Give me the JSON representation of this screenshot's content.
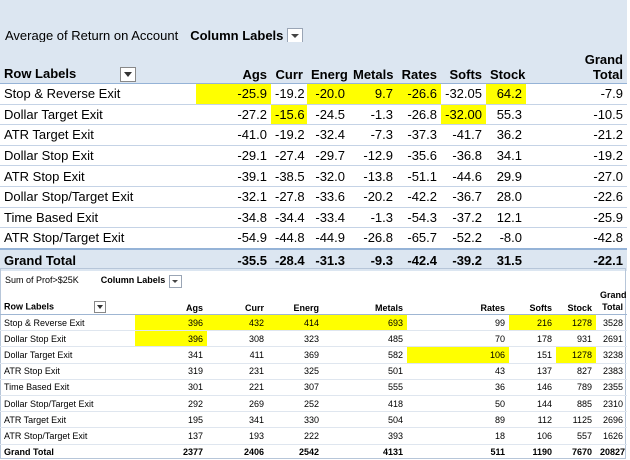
{
  "pivot1": {
    "title": "Average of Return on Account",
    "column_labels": "Column Labels",
    "row_labels": "Row Labels",
    "headers": [
      "Ags",
      "Curr",
      "Energ",
      "Metals",
      "Rates",
      "Softs",
      "Stock",
      "Grand Total"
    ],
    "grand_line1": "Grand",
    "grand_line2": "Total",
    "rows": [
      {
        "label": "Stop & Reverse Exit",
        "cells": [
          "-25.9",
          "-19.2",
          "-20.0",
          "9.7",
          "-26.6",
          "-32.05",
          "64.2",
          "-7.9"
        ],
        "hl": [
          true,
          false,
          true,
          true,
          true,
          false,
          true,
          false
        ]
      },
      {
        "label": "Dollar Target Exit",
        "cells": [
          "-27.2",
          "-15.6",
          "-24.5",
          "-1.3",
          "-26.8",
          "-32.00",
          "55.3",
          "-10.5"
        ],
        "hl": [
          false,
          true,
          false,
          false,
          false,
          true,
          false,
          false
        ]
      },
      {
        "label": "ATR Target Exit",
        "cells": [
          "-41.0",
          "-19.2",
          "-32.4",
          "-7.3",
          "-37.3",
          "-41.7",
          "36.2",
          "-21.2"
        ],
        "hl": [
          false,
          false,
          false,
          false,
          false,
          false,
          false,
          false
        ]
      },
      {
        "label": "Dollar Stop Exit",
        "cells": [
          "-29.1",
          "-27.4",
          "-29.7",
          "-12.9",
          "-35.6",
          "-36.8",
          "34.1",
          "-19.2"
        ],
        "hl": [
          false,
          false,
          false,
          false,
          false,
          false,
          false,
          false
        ]
      },
      {
        "label": "ATR Stop Exit",
        "cells": [
          "-39.1",
          "-38.5",
          "-32.0",
          "-13.8",
          "-51.1",
          "-44.6",
          "29.9",
          "-27.0"
        ],
        "hl": [
          false,
          false,
          false,
          false,
          false,
          false,
          false,
          false
        ]
      },
      {
        "label": "Dollar Stop/Target Exit",
        "cells": [
          "-32.1",
          "-27.8",
          "-33.6",
          "-20.2",
          "-42.2",
          "-36.7",
          "28.0",
          "-22.6"
        ],
        "hl": [
          false,
          false,
          false,
          false,
          false,
          false,
          false,
          false
        ]
      },
      {
        "label": "Time Based Exit",
        "cells": [
          "-34.8",
          "-34.4",
          "-33.4",
          "-1.3",
          "-54.3",
          "-37.2",
          "12.1",
          "-25.9"
        ],
        "hl": [
          false,
          false,
          false,
          false,
          false,
          false,
          false,
          false
        ]
      },
      {
        "label": "ATR Stop/Target Exit",
        "cells": [
          "-54.9",
          "-44.8",
          "-44.9",
          "-26.8",
          "-65.7",
          "-52.2",
          "-8.0",
          "-42.8"
        ],
        "hl": [
          false,
          false,
          false,
          false,
          false,
          false,
          false,
          false
        ]
      }
    ],
    "total": {
      "label": "Grand Total",
      "cells": [
        "-35.5",
        "-28.4",
        "-31.3",
        "-9.3",
        "-42.4",
        "-39.2",
        "31.5",
        "-22.1"
      ]
    }
  },
  "pivot2": {
    "title": "Sum of Prof>$25K",
    "column_labels": "Column Labels",
    "row_labels": "Row Labels",
    "headers": [
      "Ags",
      "Curr",
      "Energ",
      "Metals",
      "Rates",
      "Softs",
      "Stock",
      "Grand Total"
    ],
    "grand_line1": "Grand",
    "grand_line2": "Total",
    "rows": [
      {
        "label": "Stop & Reverse Exit",
        "cells": [
          "396",
          "432",
          "414",
          "693",
          "99",
          "216",
          "1278",
          "3528"
        ],
        "hl": [
          true,
          true,
          true,
          true,
          false,
          true,
          true,
          false
        ]
      },
      {
        "label": "Dollar Stop Exit",
        "cells": [
          "396",
          "308",
          "323",
          "485",
          "70",
          "178",
          "931",
          "2691"
        ],
        "hl": [
          true,
          false,
          false,
          false,
          false,
          false,
          false,
          false
        ]
      },
      {
        "label": "Dollar Target Exit",
        "cells": [
          "341",
          "411",
          "369",
          "582",
          "106",
          "151",
          "1278",
          "3238"
        ],
        "hl": [
          false,
          false,
          false,
          false,
          true,
          false,
          true,
          false
        ]
      },
      {
        "label": "ATR Stop Exit",
        "cells": [
          "319",
          "231",
          "325",
          "501",
          "43",
          "137",
          "827",
          "2383"
        ],
        "hl": [
          false,
          false,
          false,
          false,
          false,
          false,
          false,
          false
        ]
      },
      {
        "label": "Time Based Exit",
        "cells": [
          "301",
          "221",
          "307",
          "555",
          "36",
          "146",
          "789",
          "2355"
        ],
        "hl": [
          false,
          false,
          false,
          false,
          false,
          false,
          false,
          false
        ]
      },
      {
        "label": "Dollar Stop/Target Exit",
        "cells": [
          "292",
          "269",
          "252",
          "418",
          "50",
          "144",
          "885",
          "2310"
        ],
        "hl": [
          false,
          false,
          false,
          false,
          false,
          false,
          false,
          false
        ]
      },
      {
        "label": "ATR Target Exit",
        "cells": [
          "195",
          "341",
          "330",
          "504",
          "89",
          "112",
          "1125",
          "2696"
        ],
        "hl": [
          false,
          false,
          false,
          false,
          false,
          false,
          false,
          false
        ]
      },
      {
        "label": "ATR Stop/Target Exit",
        "cells": [
          "137",
          "193",
          "222",
          "393",
          "18",
          "106",
          "557",
          "1626"
        ],
        "hl": [
          false,
          false,
          false,
          false,
          false,
          false,
          false,
          false
        ]
      }
    ],
    "total": {
      "label": "Grand Total",
      "cells": [
        "2377",
        "2406",
        "2542",
        "4131",
        "511",
        "1190",
        "7670",
        "20827"
      ]
    }
  },
  "colors": {
    "highlight": "#ffff00",
    "header_band": "#dce6f1"
  }
}
